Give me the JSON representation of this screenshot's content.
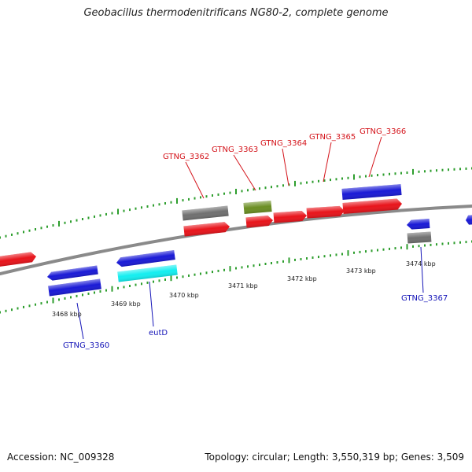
{
  "title": "Geobacillus thermodenitrificans NG80-2, complete genome",
  "footer": {
    "accession": "Accession: NC_009328",
    "summary": "Topology: circular; Length: 3,550,319 bp; Genes: 3,509"
  },
  "colors": {
    "forward_gene": "#e8141b",
    "reverse_gene": "#1a1ad6",
    "gray_gene": "#707070",
    "rna_gene": "#6b8e23",
    "cyan_gene": "#14eef0",
    "backbone": "#8a8a8a",
    "ticks": "#2e9e2e",
    "forward_label": "#d4141b",
    "reverse_label": "#1515b8"
  },
  "scale_labels": [
    "3468 kbp",
    "3469 kbp",
    "3470 kbp",
    "3471 kbp",
    "3472 kbp",
    "3473 kbp",
    "3474 kbp"
  ],
  "gene_labels": {
    "forward": [
      "GTNG_3362",
      "GTNG_3363",
      "GTNG_3364",
      "GTNG_3365",
      "GTNG_3366"
    ],
    "reverse": [
      "GTNG_3360",
      "eutD",
      "GTNG_3367"
    ]
  }
}
